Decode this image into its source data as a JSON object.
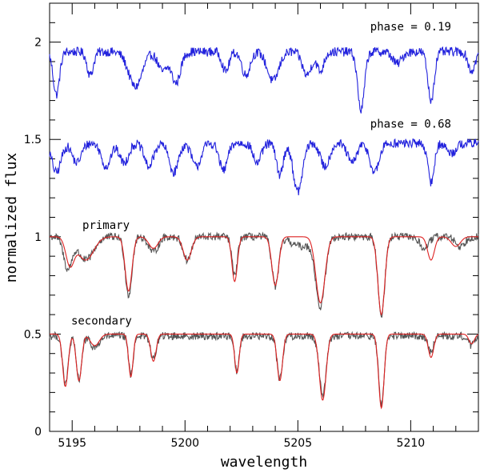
{
  "chart_data": {
    "type": "line",
    "title": "",
    "xlabel": "wavelength",
    "ylabel": "normalized flux",
    "xlim": [
      5194,
      5213
    ],
    "ylim": [
      0,
      2.2
    ],
    "xticks": [
      5195,
      5200,
      5205,
      5210
    ],
    "xtick_labels": [
      "5195",
      "5200",
      "5205",
      "5210"
    ],
    "yticks": [
      0,
      0.5,
      1,
      1.5,
      2
    ],
    "ytick_labels": [
      "0",
      "0.5",
      "1",
      "1.5",
      "2"
    ],
    "annotations": [
      {
        "text": "phase = 0.19",
        "x": 5210,
        "y": 2.06
      },
      {
        "text": "phase = 0.68",
        "x": 5210,
        "y": 1.56
      },
      {
        "text": "primary",
        "x": 5196.5,
        "y": 1.04
      },
      {
        "text": "secondary",
        "x": 5196.3,
        "y": 0.55
      }
    ],
    "series": [
      {
        "name": "phase 0.19 observed",
        "color": "#2222dd",
        "baseline": 1.95,
        "noise": 0.03,
        "lines": [
          [
            5194.3,
            0.22,
            0.14
          ],
          [
            5195.8,
            0.12,
            0.14
          ],
          [
            5197.8,
            0.18,
            0.3
          ],
          [
            5199.0,
            0.1,
            0.2
          ],
          [
            5199.6,
            0.16,
            0.2
          ],
          [
            5201.8,
            0.1,
            0.15
          ],
          [
            5202.7,
            0.12,
            0.18
          ],
          [
            5203.9,
            0.15,
            0.25
          ],
          [
            5205.4,
            0.12,
            0.2
          ],
          [
            5206.0,
            0.1,
            0.15
          ],
          [
            5207.8,
            0.3,
            0.15
          ],
          [
            5209.4,
            0.06,
            0.2
          ],
          [
            5210.9,
            0.25,
            0.14
          ],
          [
            5212.7,
            0.1,
            0.15
          ]
        ]
      },
      {
        "name": "phase 0.68 observed",
        "color": "#2222dd",
        "baseline": 1.48,
        "noise": 0.03,
        "lines": [
          [
            5194.3,
            0.15,
            0.2
          ],
          [
            5195.2,
            0.1,
            0.2
          ],
          [
            5196.5,
            0.12,
            0.2
          ],
          [
            5197.3,
            0.1,
            0.2
          ],
          [
            5198.4,
            0.12,
            0.2
          ],
          [
            5199.5,
            0.15,
            0.2
          ],
          [
            5200.5,
            0.12,
            0.2
          ],
          [
            5201.7,
            0.14,
            0.18
          ],
          [
            5203.2,
            0.1,
            0.18
          ],
          [
            5204.2,
            0.16,
            0.15
          ],
          [
            5205.0,
            0.25,
            0.2
          ],
          [
            5206.2,
            0.12,
            0.2
          ],
          [
            5207.4,
            0.1,
            0.2
          ],
          [
            5208.4,
            0.15,
            0.2
          ],
          [
            5210.9,
            0.2,
            0.14
          ],
          [
            5211.8,
            0.05,
            0.2
          ]
        ]
      },
      {
        "name": "primary observed",
        "color": "#555555",
        "baseline": 1.0,
        "noise": 0.025,
        "lines": [
          [
            5194.8,
            0.16,
            0.18
          ],
          [
            5195.6,
            0.12,
            0.35
          ],
          [
            5197.5,
            0.3,
            0.15
          ],
          [
            5198.6,
            0.08,
            0.2
          ],
          [
            5200.1,
            0.12,
            0.18
          ],
          [
            5202.2,
            0.2,
            0.12
          ],
          [
            5204.0,
            0.25,
            0.15
          ],
          [
            5205.2,
            0.05,
            0.5
          ],
          [
            5206.0,
            0.35,
            0.2
          ],
          [
            5208.7,
            0.4,
            0.15
          ],
          [
            5210.6,
            0.06,
            0.2
          ],
          [
            5212.2,
            0.05,
            0.2
          ]
        ]
      },
      {
        "name": "primary model",
        "color": "#dd2222",
        "baseline": 1.0,
        "noise": 0.0,
        "lines": [
          [
            5194.9,
            0.14,
            0.18
          ],
          [
            5195.6,
            0.12,
            0.35
          ],
          [
            5197.5,
            0.28,
            0.15
          ],
          [
            5198.6,
            0.06,
            0.2
          ],
          [
            5200.1,
            0.12,
            0.18
          ],
          [
            5202.2,
            0.23,
            0.12
          ],
          [
            5204.0,
            0.25,
            0.15
          ],
          [
            5206.0,
            0.34,
            0.2
          ],
          [
            5208.7,
            0.4,
            0.15
          ],
          [
            5210.9,
            0.12,
            0.15
          ],
          [
            5212.0,
            0.05,
            0.2
          ]
        ]
      },
      {
        "name": "secondary observed",
        "color": "#555555",
        "baseline": 0.49,
        "noise": 0.025,
        "lines": [
          [
            5194.7,
            0.25,
            0.12
          ],
          [
            5195.3,
            0.22,
            0.12
          ],
          [
            5196.0,
            0.06,
            0.2
          ],
          [
            5197.6,
            0.2,
            0.1
          ],
          [
            5198.6,
            0.12,
            0.12
          ],
          [
            5202.3,
            0.18,
            0.1
          ],
          [
            5204.2,
            0.22,
            0.12
          ],
          [
            5206.1,
            0.3,
            0.15
          ],
          [
            5208.7,
            0.35,
            0.12
          ],
          [
            5210.9,
            0.08,
            0.12
          ],
          [
            5212.7,
            0.05,
            0.12
          ]
        ]
      },
      {
        "name": "secondary model",
        "color": "#dd2222",
        "baseline": 0.5,
        "noise": 0.0,
        "lines": [
          [
            5194.7,
            0.27,
            0.12
          ],
          [
            5195.3,
            0.24,
            0.12
          ],
          [
            5196.0,
            0.06,
            0.2
          ],
          [
            5197.6,
            0.22,
            0.1
          ],
          [
            5198.6,
            0.14,
            0.12
          ],
          [
            5202.3,
            0.2,
            0.1
          ],
          [
            5204.2,
            0.24,
            0.12
          ],
          [
            5206.1,
            0.34,
            0.15
          ],
          [
            5208.7,
            0.38,
            0.12
          ],
          [
            5210.9,
            0.12,
            0.12
          ],
          [
            5212.7,
            0.05,
            0.12
          ]
        ]
      }
    ]
  }
}
